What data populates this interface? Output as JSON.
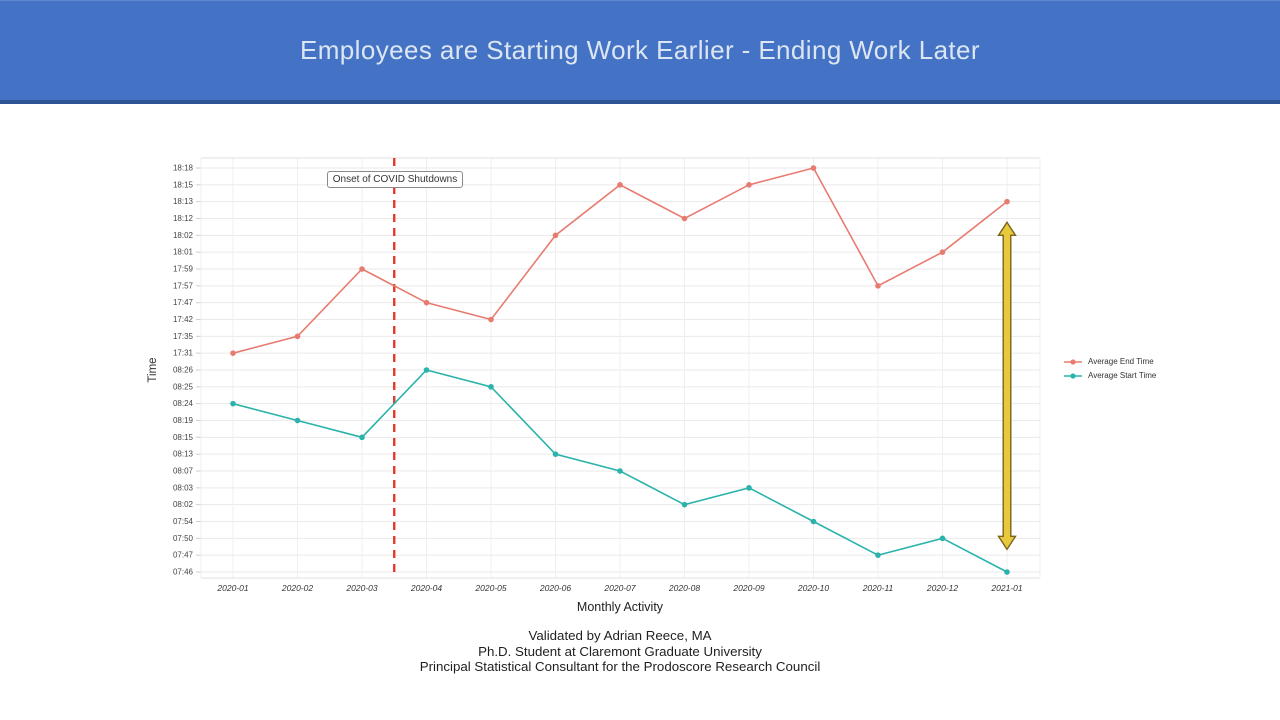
{
  "slide": {
    "title": "Employees are Starting Work Earlier - Ending Work Later",
    "banner_color": "#4472c4",
    "banner_border_color": "#2e5493",
    "title_color": "#dce6f2"
  },
  "caption": {
    "line1": "Validated by Adrian Reece, MA",
    "line2": "Ph.D. Student at Claremont Graduate University",
    "line3": "Principal Statistical Consultant for the Prodoscore Research Council"
  },
  "chart_data": {
    "type": "line",
    "title": "",
    "xlabel": "Monthly Activity",
    "ylabel": "Time",
    "grid": true,
    "categories": [
      "2020-01",
      "2020-02",
      "2020-03",
      "2020-04",
      "2020-05",
      "2020-06",
      "2020-07",
      "2020-08",
      "2020-09",
      "2020-10",
      "2020-11",
      "2020-12",
      "2021-01"
    ],
    "y_axis_ticks": [
      "18:18",
      "18:15",
      "18:13",
      "18:12",
      "18:02",
      "18:01",
      "17:59",
      "17:57",
      "17:47",
      "17:42",
      "17:35",
      "17:31",
      "08:26",
      "08:25",
      "08:24",
      "08:19",
      "08:15",
      "08:13",
      "08:07",
      "08:03",
      "08:02",
      "07:54",
      "07:50",
      "07:47",
      "07:46"
    ],
    "series": [
      {
        "name": "Average End Time",
        "color": "#e87b70",
        "values": [
          "17:31",
          "17:35",
          "17:59",
          "17:47",
          "17:42",
          "18:02",
          "18:15",
          "18:12",
          "18:15",
          "18:18",
          "17:57",
          "18:01",
          "18:13"
        ]
      },
      {
        "name": "Average Start Time",
        "color": "#2ab3ab",
        "values": [
          "08:24",
          "08:19",
          "08:15",
          "08:26",
          "08:25",
          "08:13",
          "08:07",
          "08:02",
          "08:03",
          "07:54",
          "07:47",
          "07:50",
          "07:46"
        ]
      }
    ],
    "legend": {
      "position": "right",
      "entries": [
        "Average End Time",
        "Average Start Time"
      ]
    },
    "annotations": {
      "covid_line": {
        "label": "Onset of COVID Shutdowns",
        "between": [
          "2020-03",
          "2020-04"
        ],
        "color": "#e23a2c",
        "style": "dashed"
      },
      "gap_arrow": {
        "at_category": "2021-01",
        "from": "18:02",
        "to": "07:50",
        "color": "#e8c83d",
        "border_color": "#7a651c"
      }
    }
  }
}
